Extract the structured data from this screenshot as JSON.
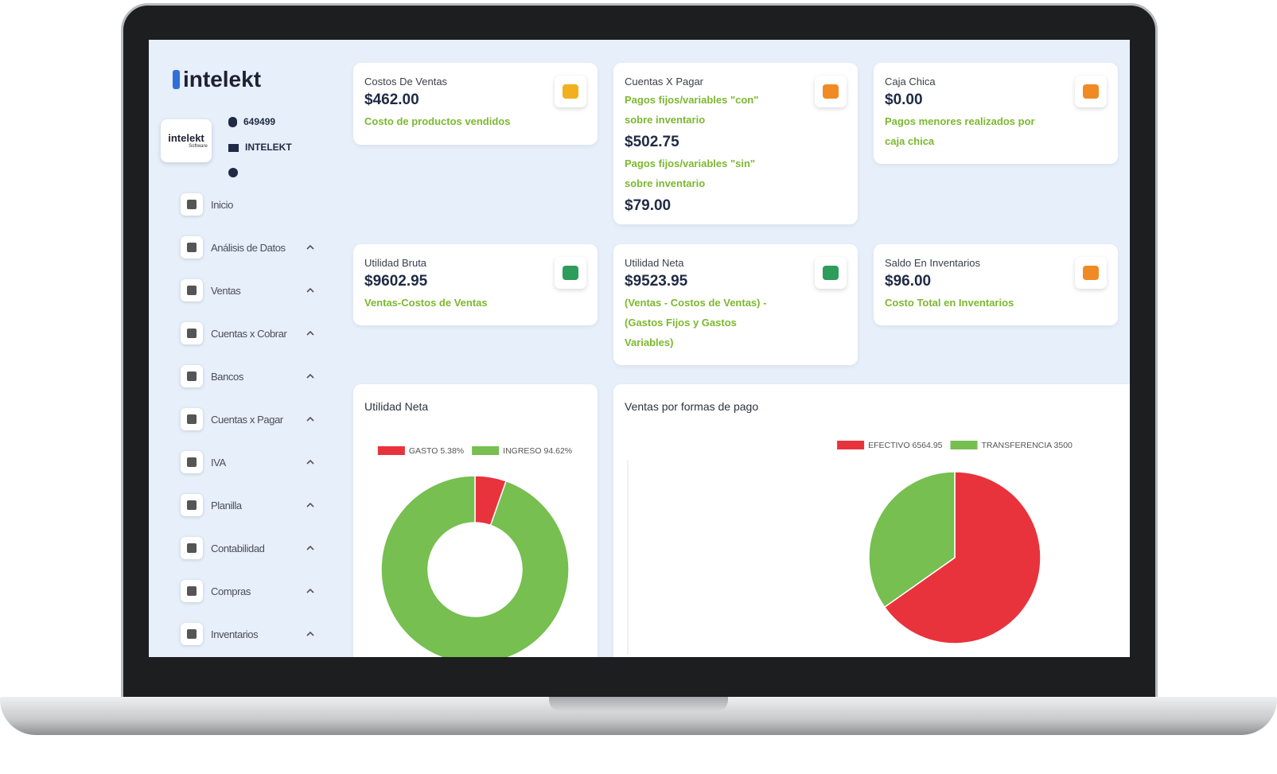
{
  "sidebar": {
    "logo": "intelekt",
    "avatar_text": "intelekt",
    "avatar_subtext": "Software",
    "account_id": "649499",
    "company": "INTELEKT",
    "menu": [
      "Inicio",
      "Análisis de Datos",
      "Ventas",
      "Cuentas x Cobrar",
      "Bancos",
      "Cuentas x Pagar",
      "IVA",
      "Planilla",
      "Contabilidad",
      "Compras",
      "Inventarios"
    ]
  },
  "cards": [
    {
      "title": "Costos De Ventas",
      "amount": "$462.00",
      "description": "Costo de productos vendidos"
    },
    {
      "title": "Cuentas X Pagar",
      "sections": [
        {
          "description": "Pagos fijos/variables \"con\" sobre inventario",
          "amount": "$502.75"
        },
        {
          "description": "Pagos fijos/variables \"sin\" sobre inventario",
          "amount": "$79.00"
        }
      ]
    },
    {
      "title": "Caja Chica",
      "amount": "$0.00",
      "description": "Pagos menores realizados por caja chica"
    },
    {
      "title": "Utilidad Bruta",
      "amount": "$9602.95",
      "description": "Ventas-Costos de Ventas"
    },
    {
      "title": "Utilidad Neta",
      "amount": "$9523.95",
      "description": "(Ventas - Costos de Ventas) - (Gastos Fijos y Gastos Variables)"
    },
    {
      "title": "Saldo En Inventarios",
      "amount": "$96.00",
      "description": "Costo Total en Inventarios"
    }
  ],
  "chart_data": [
    {
      "type": "doughnut",
      "title": "Utilidad Neta",
      "categories": [
        "GASTO",
        "INGRESO"
      ],
      "values": [
        5.38,
        94.62
      ],
      "value_labels": [
        "5.38%",
        "94.62%"
      ],
      "colors": [
        "#e8333c",
        "#76bf50"
      ]
    },
    {
      "type": "pie",
      "title": "Ventas por formas de pago",
      "categories": [
        "EFECTIVO",
        "TRANSFERENCIA"
      ],
      "values": [
        6564.95,
        3500
      ],
      "colors": [
        "#e8333c",
        "#76bf50"
      ]
    }
  ]
}
